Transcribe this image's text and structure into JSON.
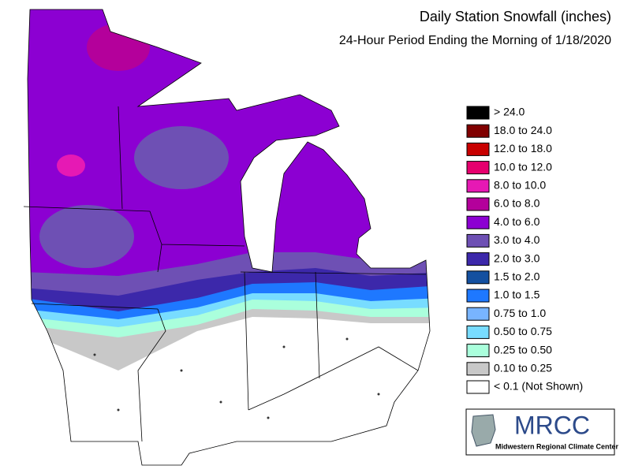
{
  "header": {
    "title": "Daily Station Snowfall (inches)",
    "subtitle": "24-Hour Period Ending the Morning of 1/18/2020"
  },
  "legend": [
    {
      "label": "> 24.0",
      "color": "#000000"
    },
    {
      "label": "18.0 to 24.0",
      "color": "#800000"
    },
    {
      "label": "12.0 to 18.0",
      "color": "#c80000"
    },
    {
      "label": "10.0 to 12.0",
      "color": "#e6006e"
    },
    {
      "label": "8.0 to 10.0",
      "color": "#e619b4"
    },
    {
      "label": "6.0 to 8.0",
      "color": "#b4009b"
    },
    {
      "label": "4.0 to 6.0",
      "color": "#8c00d2"
    },
    {
      "label": "3.0 to 4.0",
      "color": "#6e50b4"
    },
    {
      "label": "2.0 to 3.0",
      "color": "#3c28aa"
    },
    {
      "label": "1.5 to 2.0",
      "color": "#1450a0"
    },
    {
      "label": "1.0 to 1.5",
      "color": "#1e78ff"
    },
    {
      "label": "0.75 to 1.0",
      "color": "#78b4ff"
    },
    {
      "label": "0.50 to 0.75",
      "color": "#78dcff"
    },
    {
      "label": "0.25 to 0.50",
      "color": "#aaffdc"
    },
    {
      "label": "0.10 to 0.25",
      "color": "#c8c8c8"
    },
    {
      "label": "< 0.1 (Not Shown)",
      "color": "#ffffff"
    }
  ],
  "logo": {
    "title": "MRCC",
    "subtitle": "Midwestern Regional Climate Center"
  }
}
